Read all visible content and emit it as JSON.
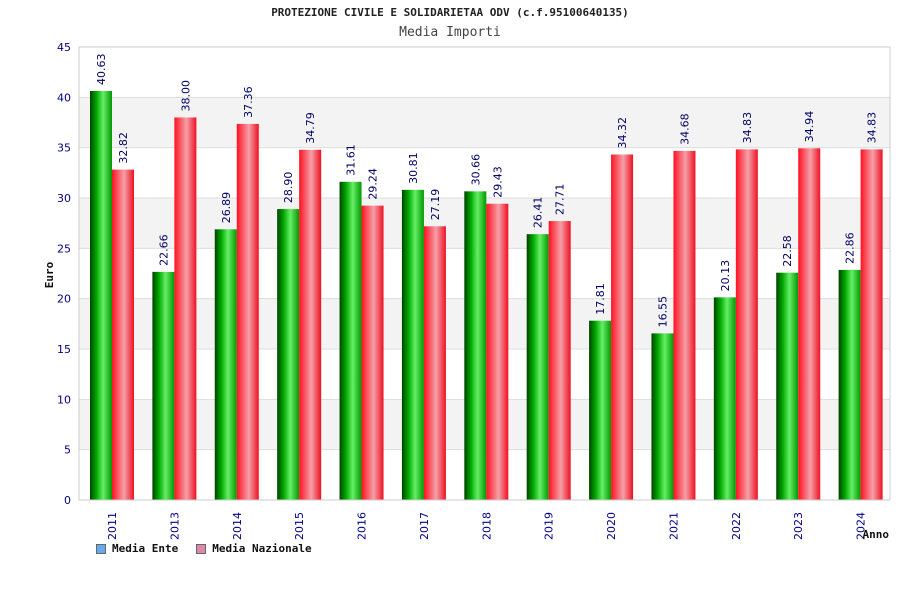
{
  "chart_data": {
    "type": "bar",
    "title": "PROTEZIONE CIVILE E SOLIDARIETAA ODV (c.f.95100640135)",
    "subtitle": "Media Importi",
    "ylabel": "Euro",
    "xlabel": "Anno",
    "ylim": [
      0,
      45
    ],
    "yticks": [
      0,
      5,
      10,
      15,
      20,
      25,
      30,
      35,
      40,
      45
    ],
    "grid": true,
    "legend_placement": "bottom-left",
    "categories": [
      "2011",
      "2013",
      "2014",
      "2015",
      "2016",
      "2017",
      "2018",
      "2019",
      "2020",
      "2021",
      "2022",
      "2023",
      "2024"
    ],
    "series": [
      {
        "name": "Media Ente",
        "bar_color": "#00aa00",
        "legend_color": "#66aaee",
        "values": [
          40.63,
          22.66,
          26.89,
          28.9,
          31.61,
          30.81,
          30.66,
          26.41,
          17.81,
          16.55,
          20.13,
          22.58,
          22.86
        ],
        "labels": [
          "40.63",
          "22.66",
          "26.89",
          "28.90",
          "31.61",
          "30.81",
          "30.66",
          "26.41",
          "17.81",
          "16.55",
          "20.13",
          "22.58",
          "22.86"
        ]
      },
      {
        "name": "Media Nazionale",
        "bar_color": "#ee2233",
        "legend_color": "#dd88aa",
        "values": [
          32.82,
          38.0,
          37.36,
          34.79,
          29.24,
          27.19,
          29.43,
          27.71,
          34.32,
          34.68,
          34.83,
          34.94,
          34.83
        ],
        "labels": [
          "32.82",
          "38.00",
          "37.36",
          "34.79",
          "29.24",
          "27.19",
          "29.43",
          "27.71",
          "34.32",
          "34.68",
          "34.83",
          "34.94",
          "34.83"
        ]
      }
    ]
  }
}
